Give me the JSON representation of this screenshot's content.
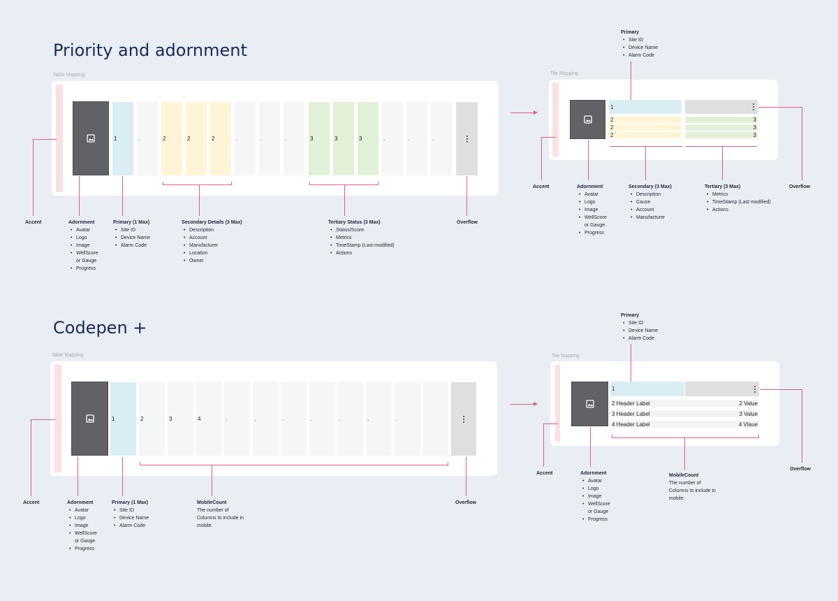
{
  "section1": {
    "title": "Priority and adornment",
    "table_caption": "Table Mapping",
    "tile_caption": "Tile Mapping",
    "table_columns": {
      "primary": "1",
      "empty": ".",
      "secondary": "2",
      "tertiary": "3"
    },
    "tile_rows": {
      "primary": "1",
      "secondary": [
        "2",
        "2",
        "2"
      ],
      "tertiary": [
        "3",
        "3",
        "3"
      ]
    },
    "table_annotations": {
      "accent": "Accent",
      "adornment": {
        "title": "Adornment",
        "items": [
          "Avatar",
          "Logo",
          "Image",
          "WellScore",
          "or Gauge",
          "Progress"
        ]
      },
      "primary": {
        "title": "Primary (1 Max)",
        "items": [
          "Site ID",
          "Device Name",
          "Alarm Code"
        ]
      },
      "secondary": {
        "title": "Secondary Details (3 Max)",
        "items": [
          "Description",
          "Account",
          "Manufacturer",
          "Location",
          "Owner"
        ]
      },
      "tertiary": {
        "title": "Tertiary Status (3 Max)",
        "items": [
          "Status/Score",
          "Metrics",
          "TimeStamp (Last modified)",
          "Actions"
        ]
      },
      "overflow": "Overflow"
    },
    "tile_annotations": {
      "primary": {
        "title": "Primary",
        "items": [
          "Site ID",
          "Device Name",
          "Alarm Code"
        ]
      },
      "accent": "Accent",
      "adornment": {
        "title": "Adornment",
        "items": [
          "Avatar",
          "Logo",
          "Image",
          "WellScore",
          "or Gauge",
          "Progress"
        ]
      },
      "secondary": {
        "title": "Secondary (3 Max)",
        "items": [
          "Description",
          "Cause",
          "Account",
          "Manufacturer"
        ]
      },
      "tertiary": {
        "title": "Tertiary (3 Max)",
        "items": [
          "Metrics",
          "TimeStamp (Last modified)",
          "Actions"
        ]
      },
      "overflow": "Overflow"
    }
  },
  "section2": {
    "title": "Codepen +",
    "table_caption": "Table Mapping",
    "tile_caption": "Tile Mapping",
    "table_columns": [
      "1",
      "2",
      "3",
      "4",
      ".",
      ".",
      ".",
      ".",
      ".",
      ".",
      "."
    ],
    "tile_primary": "1",
    "tile_rows": [
      {
        "label": "2 Header Label",
        "value": "2 Value"
      },
      {
        "label": "3 Header Label",
        "value": "3 Value"
      },
      {
        "label": "4 Header Label",
        "value": "4 Vlaue"
      }
    ],
    "table_annotations": {
      "accent": "Accent",
      "adornment": {
        "title": "Adornment",
        "items": [
          "Avatar",
          "Logo",
          "Image",
          "WellScore",
          "or Gauge",
          "Progress"
        ]
      },
      "primary": {
        "title": "Primary (1 Max)",
        "items": [
          "Site ID",
          "Device Name",
          "Alarm Code"
        ]
      },
      "mobilecount": {
        "title": "MobileCount",
        "desc_1": "The number of",
        "desc_2": "Columns to include in",
        "desc_3": "mobile."
      },
      "overflow": "Overflow"
    },
    "tile_annotations": {
      "primary": {
        "title": "Primary",
        "items": [
          "Site ID",
          "Device Name",
          "Alarm Code"
        ]
      },
      "accent": "Accent",
      "adornment": {
        "title": "Adornment",
        "items": [
          "Avatar",
          "Logo",
          "Image",
          "WellScore",
          "or Gauge",
          "Progress"
        ]
      },
      "mobilecount": {
        "title": "MobileCount",
        "desc_1": "The number of",
        "desc_2": "Columns to include in",
        "desc_3": "mobile."
      },
      "overflow": "Overflow"
    }
  },
  "colors": {
    "background": "#e9edf4",
    "accent": "#fbe1e1",
    "adornment": "#606265",
    "primary": "#d9eef3",
    "secondary": "#fff5d6",
    "tertiary": "#e3f0d8",
    "empty": "#f5f6f8",
    "overflow": "#dedfe1",
    "connector": "#e25b86",
    "title": "#1b2a5c"
  },
  "icons": [
    "image-icon",
    "kebab-menu-icon",
    "arrow-right-icon"
  ]
}
